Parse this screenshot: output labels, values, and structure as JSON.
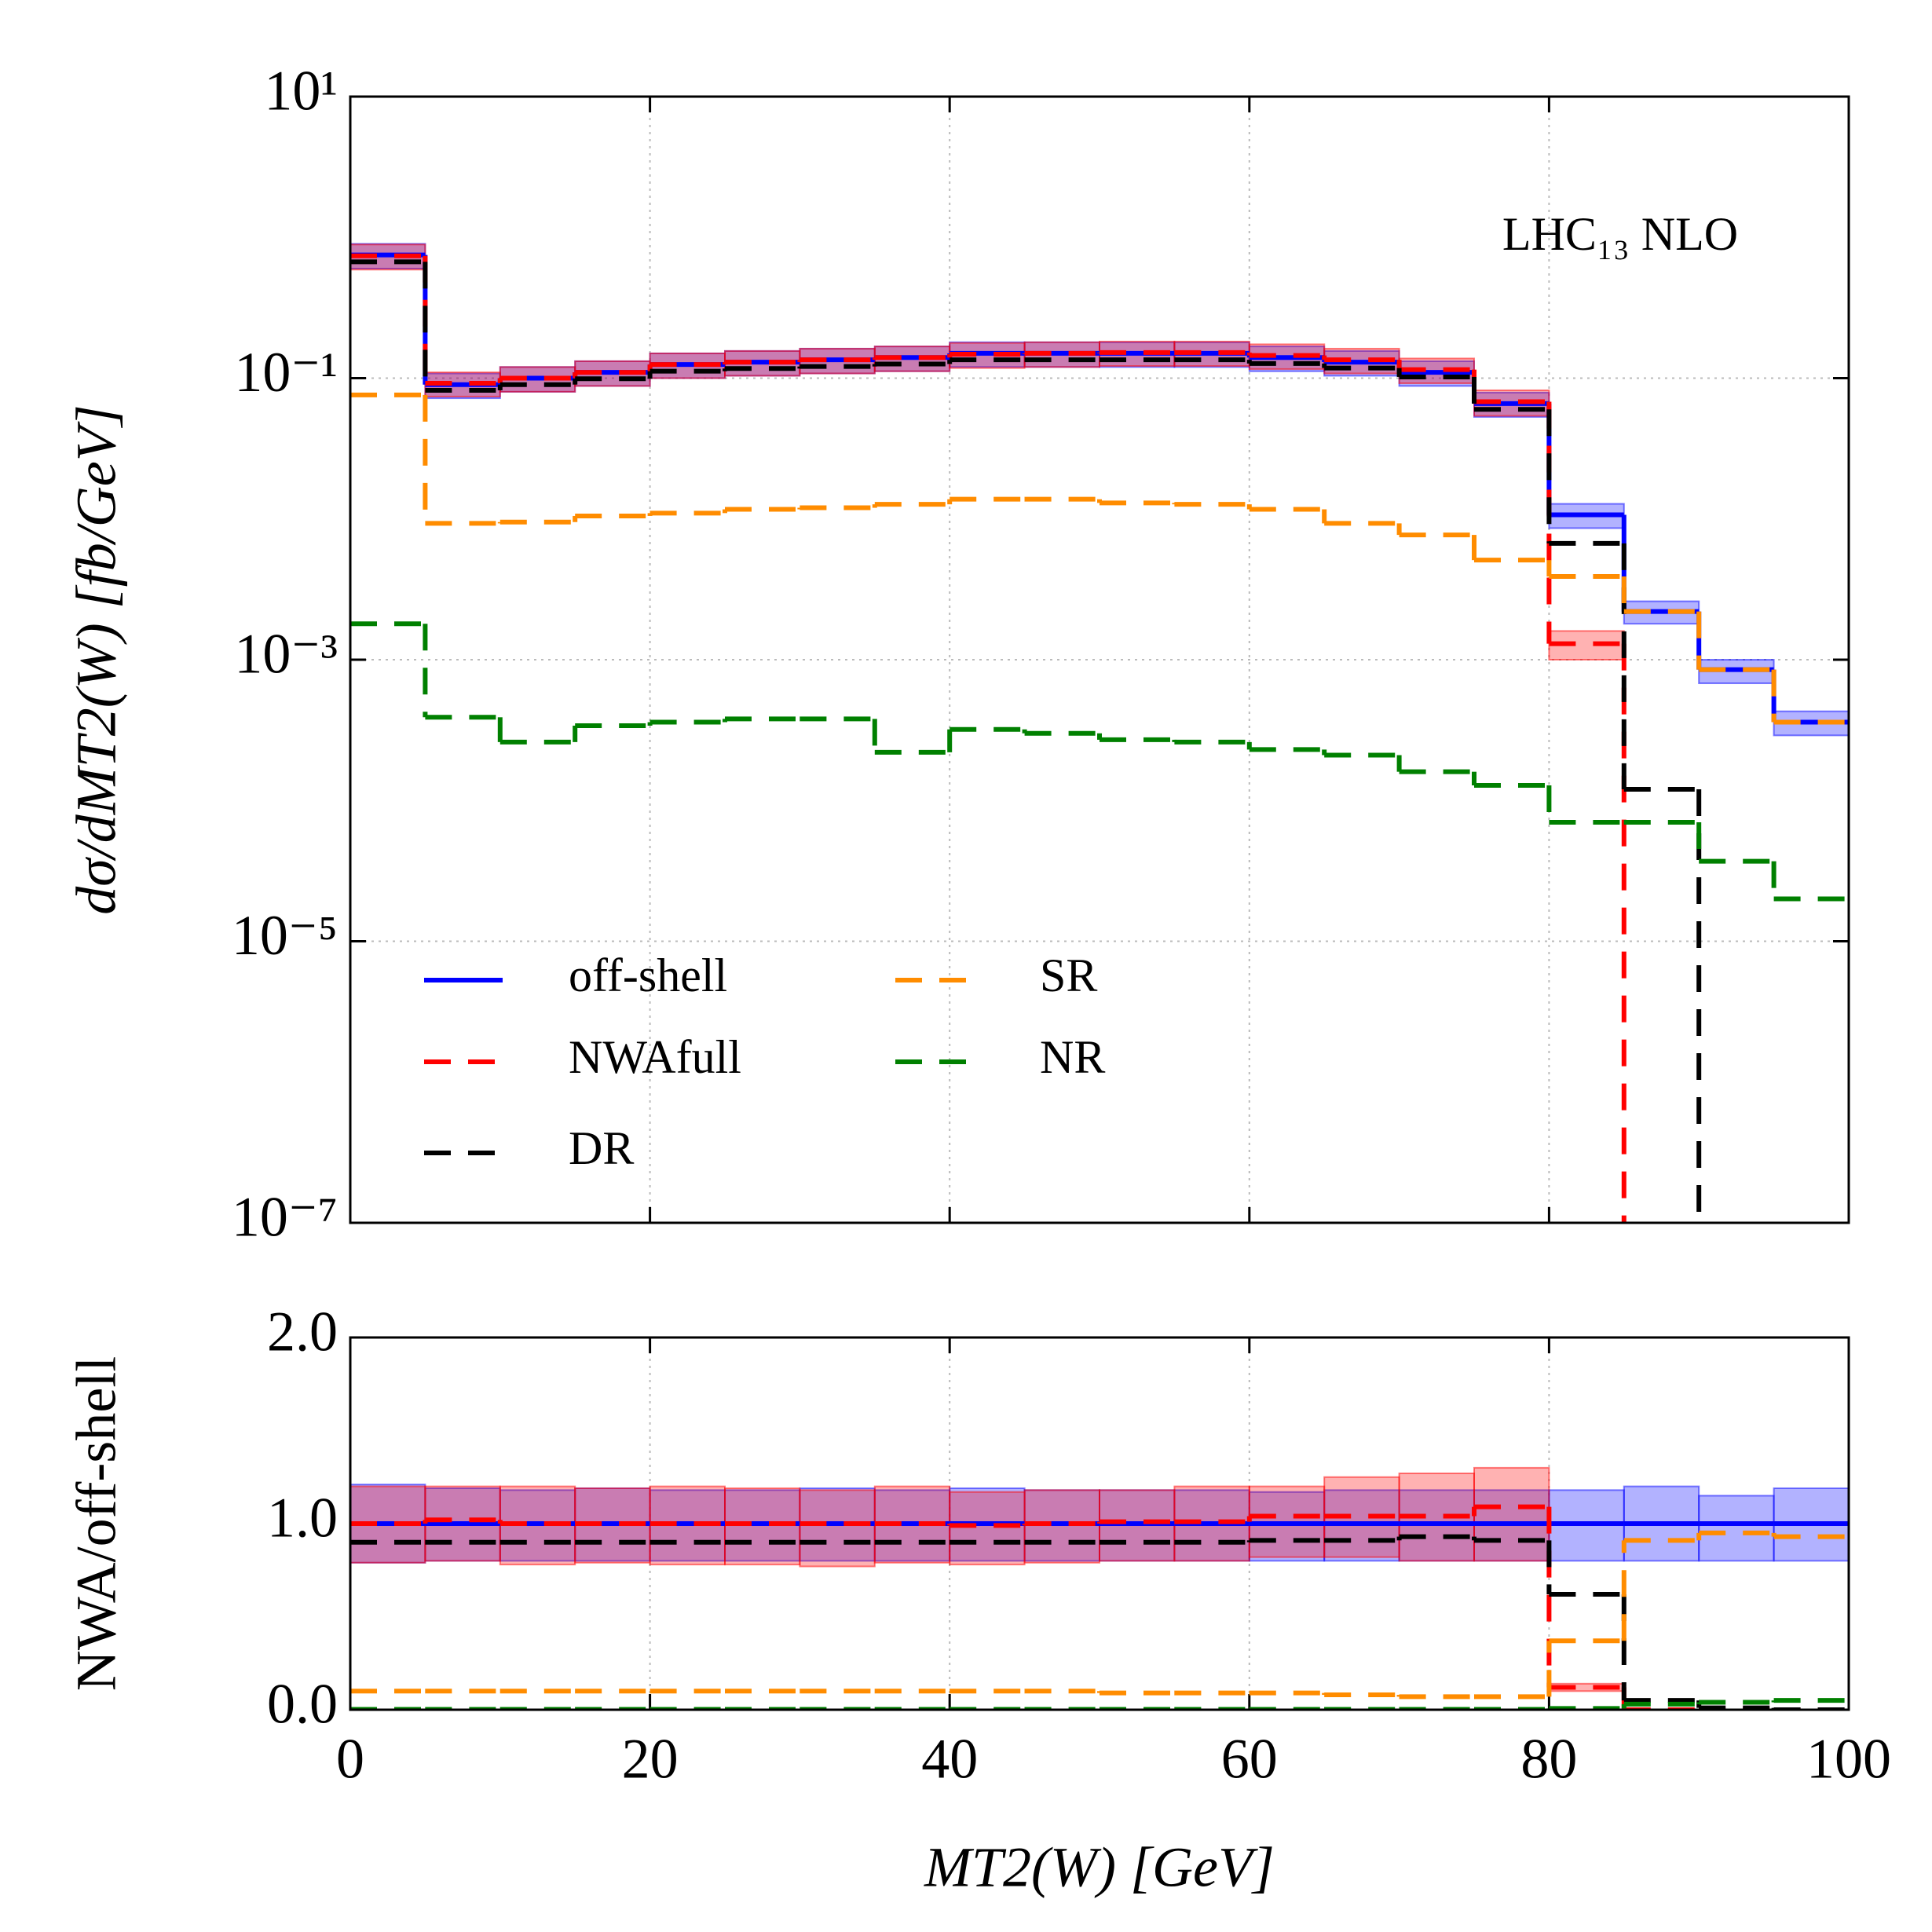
{
  "chart_data": [
    {
      "type": "histogram",
      "log": true,
      "grid": true,
      "annotation": "LHC₁₃ NLO",
      "ylabel": "dσ/dMT2(W) [fb/GeV]",
      "bins": [
        0,
        5,
        10,
        15,
        20,
        25,
        30,
        35,
        40,
        45,
        50,
        55,
        60,
        65,
        70,
        75,
        80,
        85,
        90,
        95,
        100
      ],
      "xlim": [
        0,
        100
      ],
      "ylim": [
        1e-07,
        10
      ],
      "yticks": [
        {
          "value": 1e-07,
          "label": "10⁻⁷"
        },
        {
          "value": 1e-05,
          "label": "10⁻⁵"
        },
        {
          "value": 0.001,
          "label": "10⁻³"
        },
        {
          "value": 0.1,
          "label": "10⁻¹"
        },
        {
          "value": 10,
          "label": "10¹"
        }
      ],
      "legend": "lower left",
      "series": [
        {
          "name": "off-shell",
          "color": "#0000ff",
          "linestyle": "solid",
          "values": [
            0.75,
            0.09,
            0.1,
            0.11,
            0.125,
            0.13,
            0.135,
            0.14,
            0.15,
            0.15,
            0.15,
            0.15,
            0.14,
            0.13,
            0.11,
            0.066,
            0.0107,
            0.0022,
            0.00085,
            0.00036
          ],
          "band_low": [
            0.6,
            0.072,
            0.08,
            0.088,
            0.1,
            0.104,
            0.108,
            0.112,
            0.12,
            0.12,
            0.12,
            0.12,
            0.112,
            0.104,
            0.088,
            0.053,
            0.0086,
            0.0018,
            0.00068,
            0.00029
          ],
          "band_high": [
            0.9,
            0.108,
            0.12,
            0.132,
            0.15,
            0.156,
            0.162,
            0.168,
            0.18,
            0.18,
            0.18,
            0.18,
            0.168,
            0.156,
            0.132,
            0.079,
            0.0128,
            0.0026,
            0.001,
            0.00043
          ]
        },
        {
          "name": "NWAfull",
          "color": "#ff0000",
          "linestyle": "dashed",
          "values": [
            0.74,
            0.092,
            0.1,
            0.11,
            0.125,
            0.13,
            0.135,
            0.14,
            0.148,
            0.15,
            0.152,
            0.152,
            0.145,
            0.135,
            0.115,
            0.068,
            0.0013,
            0,
            0,
            0
          ],
          "band_low": [
            0.59,
            0.074,
            0.08,
            0.088,
            0.1,
            0.104,
            0.108,
            0.112,
            0.118,
            0.12,
            0.122,
            0.122,
            0.116,
            0.108,
            0.092,
            0.054,
            0.001,
            null,
            null,
            null
          ],
          "band_high": [
            0.89,
            0.11,
            0.12,
            0.132,
            0.15,
            0.156,
            0.162,
            0.168,
            0.178,
            0.18,
            0.182,
            0.182,
            0.174,
            0.162,
            0.138,
            0.082,
            0.0016,
            null,
            null,
            null
          ]
        },
        {
          "name": "DR",
          "color": "#000000",
          "linestyle": "dashed",
          "values": [
            0.67,
            0.082,
            0.09,
            0.099,
            0.112,
            0.117,
            0.121,
            0.126,
            0.135,
            0.135,
            0.135,
            0.135,
            0.127,
            0.118,
            0.102,
            0.06,
            0.0067,
            0.00012,
            0,
            0
          ]
        },
        {
          "name": "SR",
          "color": "#ff8c00",
          "linestyle": "dashed",
          "values": [
            0.076,
            0.0093,
            0.0095,
            0.0105,
            0.011,
            0.0117,
            0.012,
            0.0127,
            0.0138,
            0.0138,
            0.013,
            0.0127,
            0.0117,
            0.0093,
            0.0077,
            0.0051,
            0.0039,
            0.0022,
            0.00085,
            0.00036
          ]
        },
        {
          "name": "NR",
          "color": "#008000",
          "linestyle": "dashed",
          "values": [
            0.0018,
            0.00039,
            0.00026,
            0.00034,
            0.00036,
            0.00038,
            0.00038,
            0.00022,
            0.00032,
            0.0003,
            0.00027,
            0.00026,
            0.00023,
            0.00021,
            0.00016,
            0.000128,
            7e-05,
            7e-05,
            3.7e-05,
            2e-05
          ]
        }
      ]
    },
    {
      "type": "histogram",
      "log": false,
      "grid": true,
      "ylabel": "NWA/off-shell",
      "xlabel": "MT2(W) [GeV]",
      "bins": [
        0,
        5,
        10,
        15,
        20,
        25,
        30,
        35,
        40,
        45,
        50,
        55,
        60,
        65,
        70,
        75,
        80,
        85,
        90,
        95,
        100
      ],
      "xlim": [
        0,
        100
      ],
      "xticks": [
        0,
        20,
        40,
        60,
        80,
        100
      ],
      "ylim": [
        0,
        2
      ],
      "yticks": [
        {
          "value": 0,
          "label": "0.0"
        },
        {
          "value": 1,
          "label": "1.0"
        },
        {
          "value": 2,
          "label": "2.0"
        }
      ],
      "series": [
        {
          "color": "#0000ff",
          "linestyle": "solid",
          "values": [
            1,
            1,
            1,
            1,
            1,
            1,
            1,
            1,
            1,
            1,
            1,
            1,
            1,
            1,
            1,
            1,
            1,
            1,
            1,
            1
          ],
          "band_low": [
            0.79,
            0.8,
            0.8,
            0.8,
            0.8,
            0.8,
            0.8,
            0.8,
            0.8,
            0.8,
            0.8,
            0.8,
            0.8,
            0.8,
            0.8,
            0.8,
            0.8,
            0.8,
            0.8,
            0.8
          ],
          "band_high": [
            1.21,
            1.19,
            1.18,
            1.19,
            1.18,
            1.18,
            1.19,
            1.18,
            1.19,
            1.18,
            1.18,
            1.18,
            1.17,
            1.18,
            1.18,
            1.18,
            1.18,
            1.2,
            1.15,
            1.19
          ]
        },
        {
          "color": "#ff0000",
          "linestyle": "dashed",
          "values": [
            1,
            1.02,
            1.0,
            1.0,
            1.0,
            1.0,
            1.0,
            1.0,
            0.99,
            1.0,
            1.01,
            1.01,
            1.04,
            1.04,
            1.04,
            1.09,
            0.12,
            0,
            0,
            0
          ],
          "band_low": [
            0.79,
            0.8,
            0.78,
            0.79,
            0.78,
            0.78,
            0.77,
            0.79,
            0.78,
            0.79,
            0.8,
            0.8,
            0.82,
            0.82,
            0.8,
            0.8,
            0.1,
            null,
            null,
            null
          ],
          "band_high": [
            1.2,
            1.2,
            1.2,
            1.19,
            1.2,
            1.19,
            1.18,
            1.2,
            1.17,
            1.18,
            1.18,
            1.2,
            1.2,
            1.25,
            1.27,
            1.3,
            0.14,
            null,
            null,
            null
          ]
        },
        {
          "color": "#000000",
          "linestyle": "dashed",
          "values": [
            0.9,
            0.9,
            0.9,
            0.9,
            0.9,
            0.9,
            0.9,
            0.9,
            0.9,
            0.9,
            0.9,
            0.9,
            0.91,
            0.91,
            0.93,
            0.91,
            0.62,
            0.05,
            0.01,
            0
          ]
        },
        {
          "color": "#ff8c00",
          "linestyle": "dashed",
          "values": [
            0.1,
            0.1,
            0.1,
            0.1,
            0.1,
            0.1,
            0.1,
            0.1,
            0.1,
            0.1,
            0.09,
            0.09,
            0.09,
            0.08,
            0.07,
            0.07,
            0.37,
            0.91,
            0.95,
            0.93
          ]
        },
        {
          "color": "#008000",
          "linestyle": "dashed",
          "values": [
            0.002,
            0.002,
            0.002,
            0.002,
            0.002,
            0.002,
            0.002,
            0.002,
            0.002,
            0.002,
            0.002,
            0.002,
            0.002,
            0.002,
            0.002,
            0.002,
            0.007,
            0.03,
            0.04,
            0.05
          ]
        }
      ]
    }
  ]
}
